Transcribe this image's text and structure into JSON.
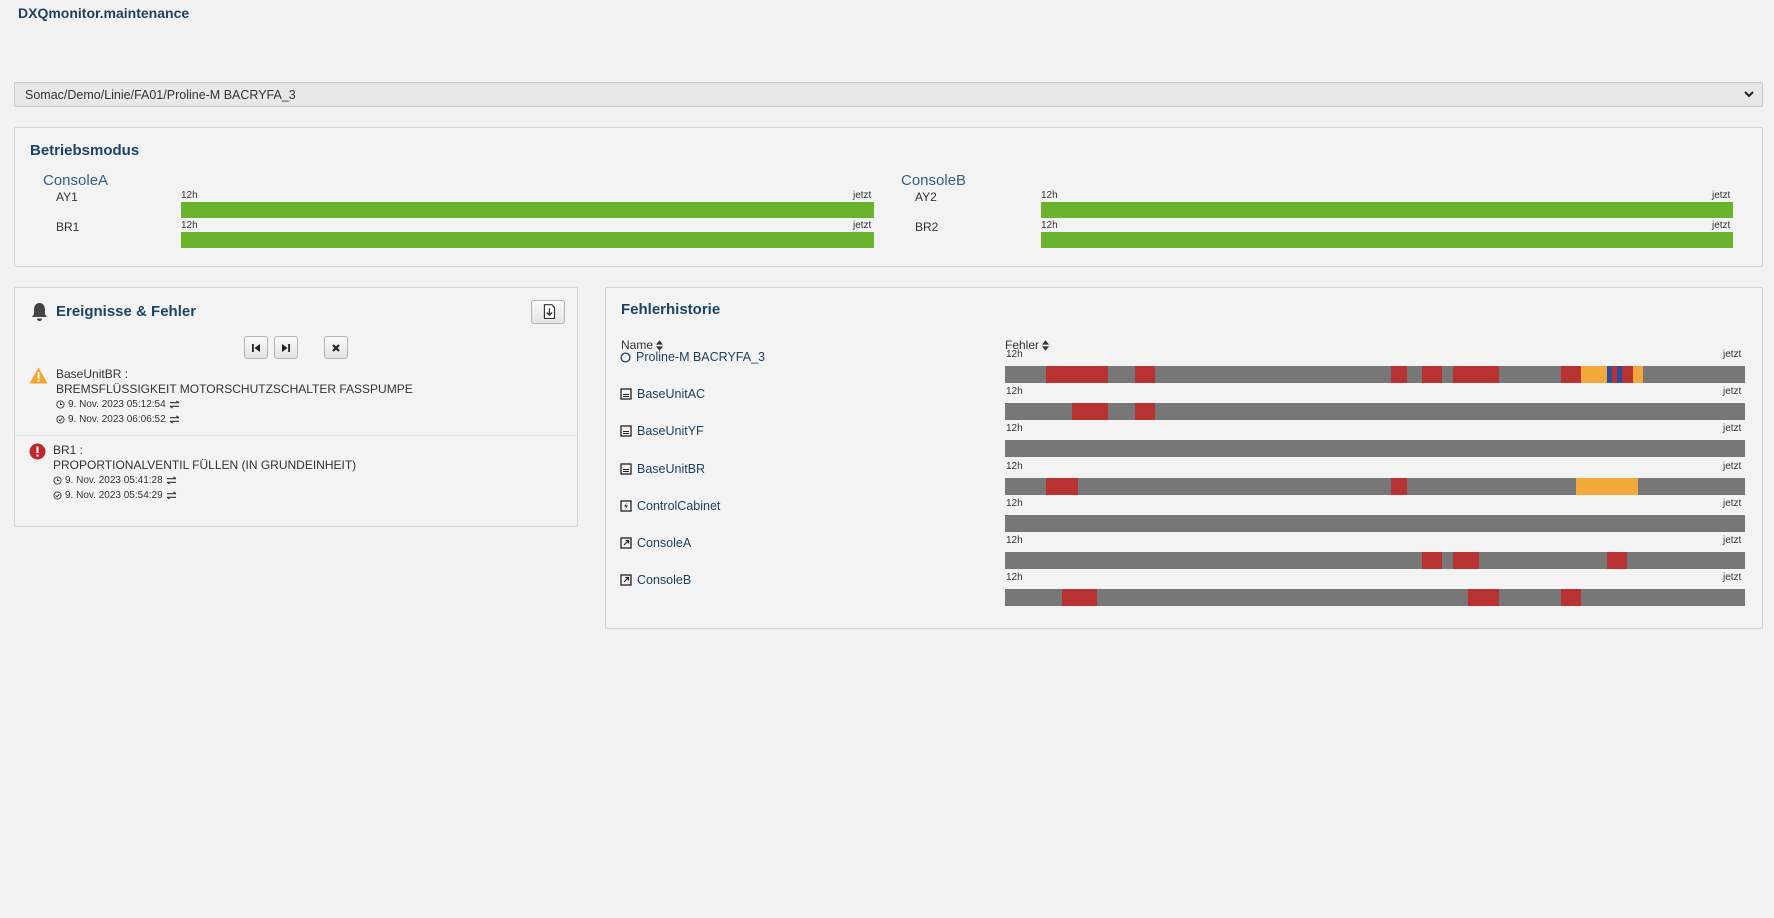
{
  "app": {
    "title": "DXQmonitor.maintenance"
  },
  "path_select": {
    "value": "Somac/Demo/Linie/FA01/Proline-M BACRYFA_3"
  },
  "betriebsmodus": {
    "title": "Betriebsmodus",
    "time_start": "12h",
    "time_end": "jetzt",
    "consoles": [
      {
        "title": "ConsoleA",
        "rows": [
          {
            "label": "AY1",
            "color": "#6ab32c"
          },
          {
            "label": "BR1",
            "color": "#6ab32c"
          }
        ]
      },
      {
        "title": "ConsoleB",
        "rows": [
          {
            "label": "AY2",
            "color": "#6ab32c"
          },
          {
            "label": "BR2",
            "color": "#6ab32c"
          }
        ]
      }
    ]
  },
  "events": {
    "title": "Ereignisse & Fehler",
    "items": [
      {
        "severity": "warning",
        "icon": "warning-triangle-icon",
        "source": "BaseUnitBR :",
        "message": "BREMSFLÜSSIGKEIT MOTORSCHUTZSCHALTER FASSPUMPE",
        "start": "9. Nov. 2023 05:12:54",
        "end": "9. Nov. 2023 06:06:52"
      },
      {
        "severity": "error",
        "icon": "error-circle-icon",
        "source": "BR1 :",
        "message": "PROPORTIONALVENTIL FÜLLEN (IN GRUNDEINHEIT)",
        "start": "9. Nov. 2023 05:41:28",
        "end": "9. Nov. 2023 05:54:29"
      }
    ]
  },
  "history": {
    "title": "Fehlerhistorie",
    "col_name": "Name",
    "col_errors": "Fehler",
    "time_start": "12h",
    "time_end": "jetzt",
    "colors": {
      "base": "#777777",
      "error": "#b83232",
      "warning": "#f2a83a",
      "info": "#2b4f9a"
    },
    "rows": [
      {
        "name": "Proline-M BACRYFA_3",
        "icon": "circle-outline-icon",
        "segments": [
          [
            0.056,
            0.139,
            "error"
          ],
          [
            0.175,
            0.203,
            "error"
          ],
          [
            0.522,
            0.543,
            "error"
          ],
          [
            0.563,
            0.591,
            "error"
          ],
          [
            0.605,
            0.668,
            "error"
          ],
          [
            0.751,
            0.779,
            "error"
          ],
          [
            0.779,
            0.813,
            "warning"
          ],
          [
            0.813,
            0.82,
            "info"
          ],
          [
            0.82,
            0.827,
            "error"
          ],
          [
            0.827,
            0.834,
            "info"
          ],
          [
            0.834,
            0.848,
            "error"
          ],
          [
            0.848,
            0.862,
            "warning"
          ]
        ]
      },
      {
        "name": "BaseUnitAC",
        "icon": "unit-icon",
        "segments": [
          [
            0.091,
            0.139,
            "error"
          ],
          [
            0.175,
            0.203,
            "error"
          ]
        ]
      },
      {
        "name": "BaseUnitYF",
        "icon": "unit-icon",
        "segments": []
      },
      {
        "name": "BaseUnitBR",
        "icon": "unit-icon",
        "segments": [
          [
            0.056,
            0.098,
            "error"
          ],
          [
            0.522,
            0.543,
            "error"
          ],
          [
            0.772,
            0.855,
            "warning"
          ]
        ]
      },
      {
        "name": "ControlCabinet",
        "icon": "lightning-icon",
        "segments": []
      },
      {
        "name": "ConsoleA",
        "icon": "external-link-icon",
        "segments": [
          [
            0.563,
            0.591,
            "error"
          ],
          [
            0.605,
            0.64,
            "error"
          ],
          [
            0.813,
            0.841,
            "error"
          ]
        ]
      },
      {
        "name": "ConsoleB",
        "icon": "external-link-icon",
        "segments": [
          [
            0.077,
            0.125,
            "error"
          ],
          [
            0.626,
            0.668,
            "error"
          ],
          [
            0.751,
            0.779,
            "error"
          ]
        ]
      }
    ]
  }
}
